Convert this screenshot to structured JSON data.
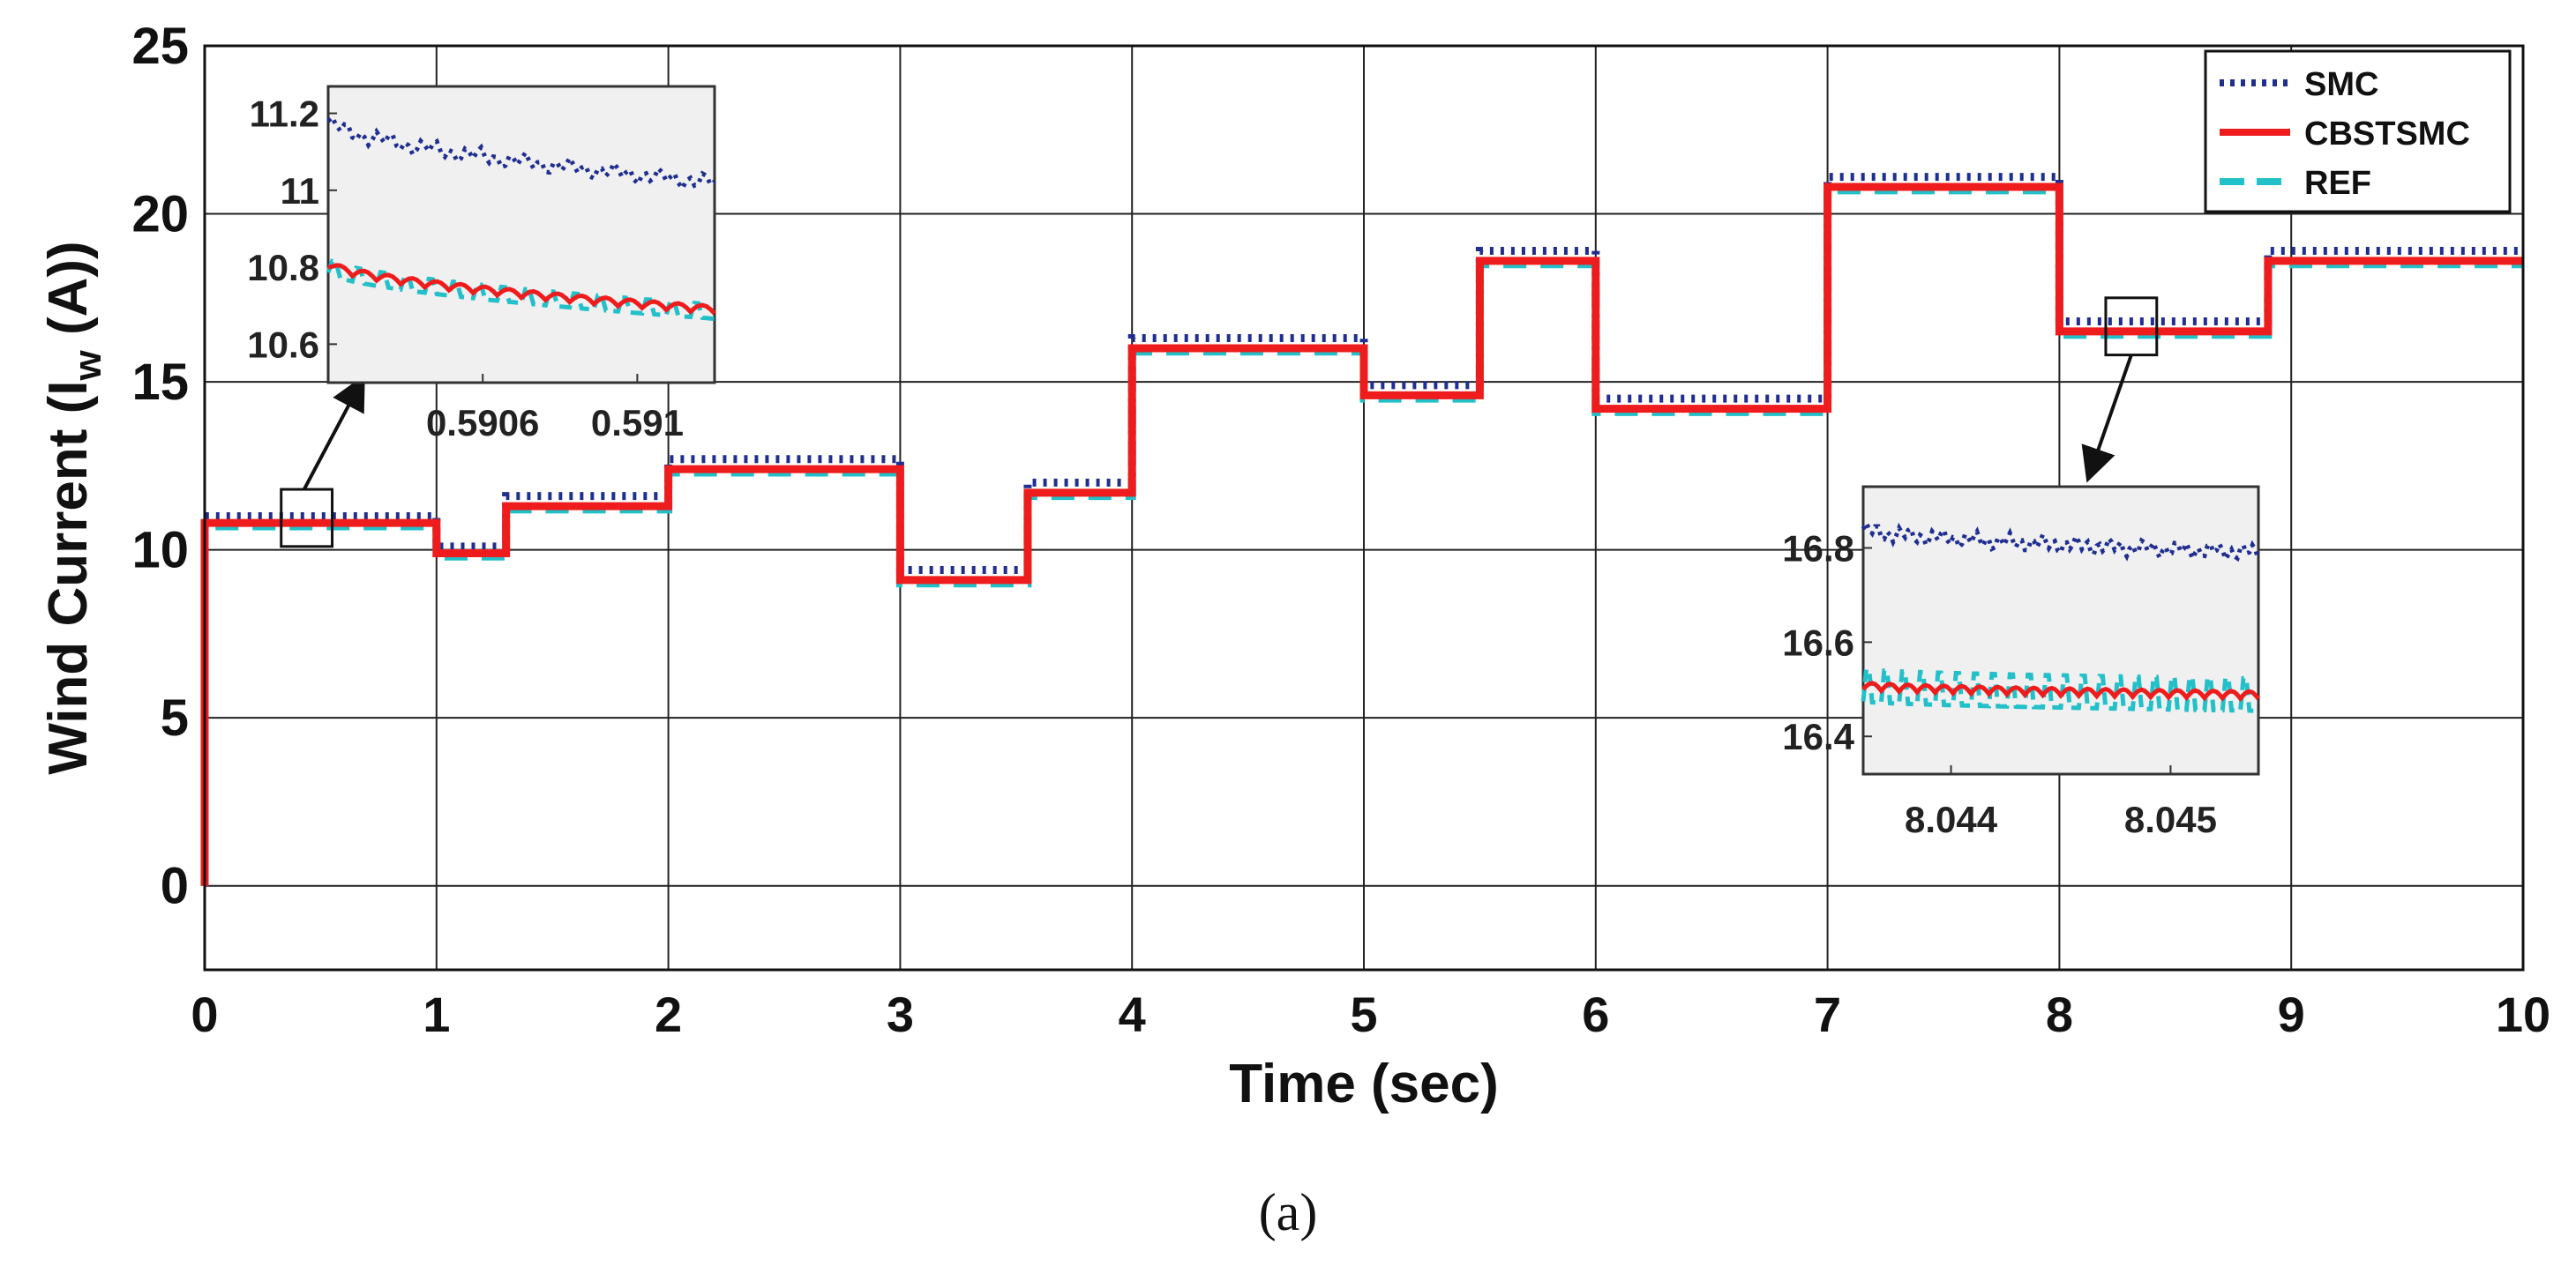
{
  "chart_data": {
    "type": "line",
    "xlabel": "Time (sec)",
    "ylabel_main": "Wind Current (I",
    "ylabel_sub": "w",
    "ylabel_end": " (A))",
    "xlim": [
      0,
      10
    ],
    "ylim": [
      -2.5,
      25
    ],
    "x_ticks": [
      "0",
      "1",
      "2",
      "3",
      "4",
      "5",
      "6",
      "7",
      "8",
      "9",
      "10"
    ],
    "y_ticks": [
      "0",
      "5",
      "10",
      "15",
      "20",
      "25"
    ],
    "grid": true,
    "legend_position": "top-right",
    "caption": "(a)",
    "colors": {
      "SMC": "#1f2e8f",
      "CBSTSMC": "#ee1c1c",
      "REF": "#22c0c8"
    },
    "legend": [
      {
        "name": "SMC",
        "style": "dotted"
      },
      {
        "name": "CBSTSMC",
        "style": "solid"
      },
      {
        "name": "REF",
        "style": "dashed"
      }
    ],
    "step_times": [
      0,
      1,
      1.3,
      2,
      3,
      3.55,
      4,
      5,
      5.5,
      6,
      7,
      8,
      8.9,
      10
    ],
    "series": [
      {
        "name": "SMC",
        "values": [
          11.0,
          10.1,
          11.6,
          12.7,
          9.4,
          12.0,
          16.3,
          14.9,
          18.9,
          14.5,
          21.1,
          16.8,
          18.9
        ]
      },
      {
        "name": "CBSTSMC",
        "values": [
          10.8,
          9.9,
          11.3,
          12.4,
          9.1,
          11.7,
          16.0,
          14.6,
          18.6,
          14.2,
          20.8,
          16.5,
          18.6
        ]
      },
      {
        "name": "REF",
        "values": [
          10.7,
          9.8,
          11.2,
          12.3,
          9.0,
          11.6,
          15.9,
          14.5,
          18.5,
          14.1,
          20.7,
          16.4,
          18.5
        ]
      }
    ],
    "insets": [
      {
        "xlim": [
          0.5902,
          0.5912
        ],
        "ylim": [
          10.5,
          11.27
        ],
        "x_ticks": [
          "0.5906",
          "0.591"
        ],
        "x_tick_values": [
          0.5906,
          0.591
        ],
        "y_ticks": [
          "11.2",
          "11",
          "10.8",
          "10.6"
        ],
        "y_tick_values": [
          11.2,
          11.0,
          10.8,
          10.6
        ],
        "series": [
          {
            "name": "SMC",
            "start": 11.18,
            "end": 11.02
          },
          {
            "name": "CBSTSMC",
            "start": 10.8,
            "end": 10.68
          },
          {
            "name": "REF",
            "start": 10.8,
            "end": 10.68
          }
        ]
      },
      {
        "xlim": [
          8.0436,
          8.0454
        ],
        "ylim": [
          16.32,
          16.93
        ],
        "x_ticks": [
          "8.044",
          "8.045"
        ],
        "x_tick_values": [
          8.044,
          8.045
        ],
        "y_ticks": [
          "16.8",
          "16.6",
          "16.4"
        ],
        "y_tick_values": [
          16.8,
          16.6,
          16.4
        ],
        "series": [
          {
            "name": "SMC",
            "start": 16.84,
            "end": 16.79
          },
          {
            "name": "CBSTSMC",
            "start": 16.5,
            "end": 16.48
          },
          {
            "name": "REF",
            "start": 16.5,
            "end": 16.48
          }
        ]
      }
    ]
  }
}
